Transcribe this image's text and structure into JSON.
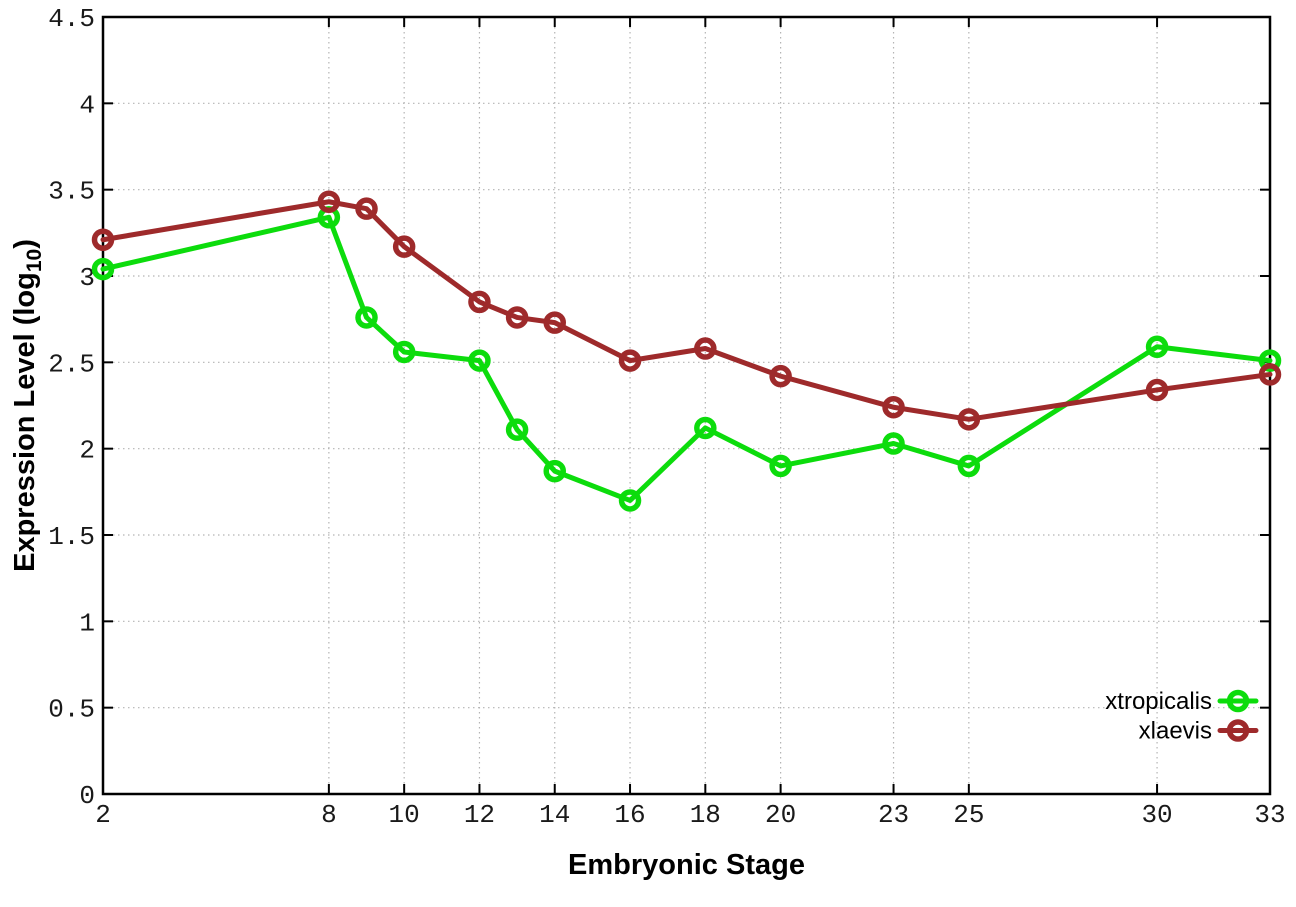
{
  "chart_data": {
    "type": "line",
    "title": "",
    "xlabel": "Embryonic Stage",
    "ylabel": {
      "prefix": "Expression Level (log",
      "subscript": "10",
      "suffix": ")"
    },
    "x": [
      2,
      8,
      9,
      10,
      12,
      13,
      14,
      16,
      18,
      20,
      23,
      25,
      30,
      33
    ],
    "xtick_labels": [
      "2",
      "8",
      "10",
      "12",
      "14",
      "16",
      "18",
      "20",
      "23",
      "25",
      "30",
      "33"
    ],
    "xtick_values": [
      2,
      8,
      10,
      12,
      14,
      16,
      18,
      20,
      23,
      25,
      30,
      33
    ],
    "ytick_labels": [
      "0",
      "0.5",
      "1",
      "1.5",
      "2",
      "2.5",
      "3",
      "3.5",
      "4",
      "4.5"
    ],
    "ytick_values": [
      0,
      0.5,
      1,
      1.5,
      2,
      2.5,
      3,
      3.5,
      4,
      4.5
    ],
    "xlim": [
      2,
      33
    ],
    "ylim": [
      0,
      4.5
    ],
    "grid": true,
    "legend": {
      "position": "inside-bottom-right"
    },
    "series": [
      {
        "name": "xtropicalis",
        "color": "#0cdc0c",
        "marker": "open-circle",
        "values": [
          3.04,
          3.34,
          2.76,
          2.56,
          2.51,
          2.11,
          1.87,
          1.7,
          2.12,
          1.9,
          2.03,
          1.9,
          2.59,
          2.51
        ]
      },
      {
        "name": "xlaevis",
        "color": "#9e2a2b",
        "marker": "open-circle",
        "values": [
          3.21,
          3.43,
          3.39,
          3.17,
          2.85,
          2.76,
          2.73,
          2.51,
          2.58,
          2.42,
          2.24,
          2.17,
          2.34,
          2.43
        ]
      }
    ],
    "colors": {
      "axis": "#000000",
      "grid": "#b4b4b4",
      "tick_text": "#1a1a1a",
      "background": "#ffffff"
    }
  }
}
